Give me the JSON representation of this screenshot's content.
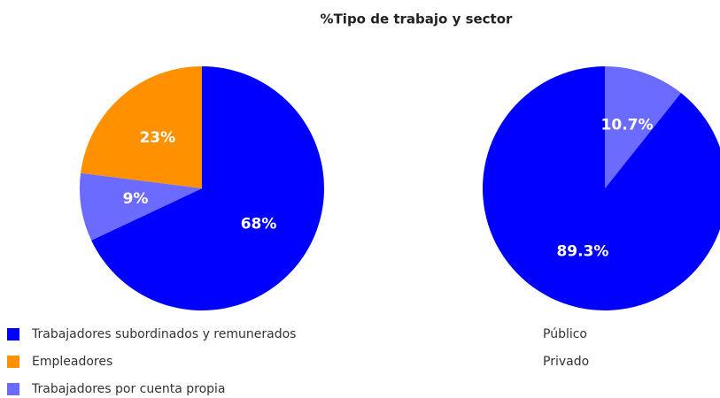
{
  "chart_data": [
    {
      "type": "pie",
      "title": "%Tipo de trabajo y sector",
      "categories": [
        "Trabajadores subordinados y remunerados",
        "Empleadores",
        "Trabajadores por cuenta propia"
      ],
      "values": [
        68,
        23,
        9
      ],
      "value_labels": [
        "68%",
        "23%",
        "9%"
      ],
      "colors": [
        "#0000ff",
        "#ff9100",
        "#6b6bff"
      ],
      "counterclock": false,
      "legend_swatches": true
    },
    {
      "type": "pie",
      "categories": [
        "Público",
        "Privado"
      ],
      "values": [
        89.3,
        10.7
      ],
      "value_labels": [
        "89.3%",
        "10.7%"
      ],
      "colors": [
        "#0000ff",
        "#6b6bff"
      ],
      "counterclock": true,
      "legend_swatches": false
    }
  ]
}
